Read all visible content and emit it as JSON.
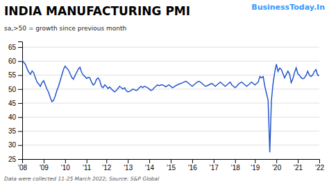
{
  "chart_data": {
    "type": "line",
    "title": "INDIA MANUFACTURING PMI",
    "subtitle": "sa,>50 = growth since previous month",
    "annotations": [
      "BusinessToday.In",
      "Data were collected 11-25 March 2022; Source: S&P Global"
    ],
    "color": "#2255cc",
    "grid": true,
    "ylim": [
      25,
      67
    ],
    "yticks": [
      25,
      30,
      35,
      40,
      45,
      50,
      55,
      60,
      65
    ],
    "categories": [
      "'08",
      null,
      null,
      null,
      null,
      null,
      null,
      null,
      null,
      null,
      null,
      null,
      null,
      "'09",
      null,
      null,
      null,
      null,
      null,
      null,
      null,
      null,
      null,
      null,
      null,
      null,
      "'10",
      null,
      null,
      null,
      null,
      null,
      null,
      null,
      null,
      null,
      null,
      null,
      null,
      "'11",
      null,
      null,
      null,
      null,
      null,
      null,
      null,
      null,
      null,
      null,
      null,
      "'12",
      null,
      null,
      null,
      null,
      null,
      null,
      null,
      null,
      null,
      null,
      null,
      null,
      "'13",
      null,
      null,
      null,
      null,
      null,
      null,
      null,
      null,
      null,
      null,
      null,
      null,
      "'14",
      null,
      null,
      null,
      null,
      null,
      null,
      null,
      null,
      null,
      null,
      null,
      null,
      "'15",
      null,
      null,
      null,
      null,
      null,
      null,
      null,
      null,
      null,
      null,
      null,
      null,
      "'16",
      null,
      null,
      null,
      null,
      null,
      null,
      null,
      null,
      null,
      null,
      null,
      null,
      "'17",
      null,
      null,
      null,
      null,
      null,
      null,
      null,
      null,
      null,
      null,
      null,
      null,
      "'18",
      null,
      null,
      null,
      null,
      null,
      null,
      null,
      null,
      null,
      null,
      null,
      "'19",
      null,
      null,
      null,
      null,
      null,
      null,
      null,
      null,
      null,
      null,
      null,
      null,
      "'20",
      null,
      null,
      null,
      null,
      null,
      null,
      null,
      null,
      null,
      null,
      null,
      null,
      "'21",
      null,
      null,
      null,
      null,
      null,
      null,
      null,
      null,
      null,
      null,
      null,
      null,
      "'22"
    ],
    "values": [
      60.3,
      59.5,
      58.8,
      57.2,
      56.0,
      55.3,
      56.5,
      55.8,
      54.0,
      52.5,
      51.8,
      51.0,
      52.3,
      53.0,
      51.5,
      50.0,
      48.8,
      47.0,
      45.5,
      46.0,
      47.5,
      49.5,
      51.0,
      53.0,
      55.0,
      57.0,
      58.2,
      57.5,
      56.8,
      55.5,
      54.2,
      53.5,
      54.8,
      56.0,
      57.2,
      57.8,
      56.0,
      55.0,
      54.5,
      53.8,
      54.2,
      54.0,
      52.5,
      51.5,
      52.0,
      53.5,
      54.0,
      53.0,
      51.0,
      50.5,
      51.5,
      51.0,
      50.2,
      50.8,
      50.0,
      49.5,
      49.0,
      49.5,
      50.2,
      51.0,
      50.5,
      50.0,
      50.5,
      49.5,
      49.0,
      49.2,
      49.5,
      50.0,
      49.8,
      49.5,
      49.8,
      50.5,
      51.0,
      50.5,
      51.0,
      50.8,
      50.5,
      50.0,
      49.5,
      49.8,
      50.5,
      51.0,
      51.5,
      51.2,
      51.5,
      51.5,
      51.2,
      50.8,
      51.2,
      51.5,
      51.0,
      50.5,
      50.8,
      51.2,
      51.5,
      51.8,
      52.0,
      52.2,
      52.5,
      52.8,
      52.5,
      52.0,
      51.5,
      51.0,
      51.5,
      52.0,
      52.5,
      52.8,
      52.5,
      52.0,
      51.5,
      51.0,
      51.2,
      51.5,
      51.8,
      52.0,
      51.5,
      51.0,
      51.5,
      52.0,
      52.5,
      52.0,
      51.5,
      51.0,
      51.5,
      52.0,
      52.5,
      51.5,
      51.0,
      50.5,
      51.0,
      51.8,
      52.2,
      52.5,
      52.0,
      51.5,
      51.0,
      51.5,
      52.0,
      52.5,
      52.0,
      51.5,
      52.0,
      52.5,
      54.5,
      54.0,
      54.5,
      51.0,
      48.5,
      46.0,
      27.4,
      46.0,
      52.0,
      56.0,
      58.9,
      56.3,
      57.5,
      57.0,
      55.5,
      54.0,
      55.3,
      56.4,
      55.3,
      52.3,
      53.7,
      55.9,
      57.6,
      55.5,
      54.9,
      54.1,
      53.7,
      54.0,
      54.9,
      56.4,
      55.0,
      54.5,
      55.0,
      56.3,
      57.0,
      55.0,
      54.8
    ]
  }
}
